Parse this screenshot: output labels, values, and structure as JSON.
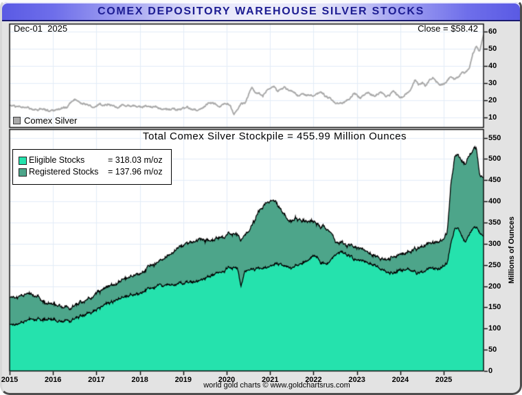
{
  "header": {
    "title": "COMEX DEPOSITORY WAREHOUSE SILVER STOCKS",
    "title_color": "#1c1c92"
  },
  "footer": {
    "text": "world gold charts © www.goldchartsrus.com"
  },
  "price_panel": {
    "date_label": "Dec-01  2025",
    "close_label": "Close = $58.42",
    "legend": {
      "label": "Comex Silver",
      "swatch_color": "#a9a9a9"
    }
  },
  "stock_panel": {
    "title": "Total Comex Silver Stockpile = 455.99 Million Ounces",
    "y_axis_label": "Millions of Ounces",
    "legend": [
      {
        "label": "Eligible Stocks",
        "value": "= 318.03 m/oz",
        "color": "#25e2ad"
      },
      {
        "label": "Registered Stocks",
        "value": "= 137.96 m/oz",
        "color": "#4da58a"
      }
    ]
  },
  "colors": {
    "frame_bg": "#e3e3e3",
    "plot_bg": "#ffffff",
    "grid": "#e2ecf7",
    "plot_border": "#000000",
    "price_line": "#ababab",
    "eligible_fill": "#25e2ad",
    "registered_fill": "#4da58a",
    "area_outline": "#000000",
    "titlebar_navy": "#1a1a70"
  },
  "chart_data": [
    {
      "type": "line",
      "panel": "top",
      "title": "",
      "ylabel": "",
      "x_start": 2015.0,
      "x_step_years": 0.0833333,
      "xticks": [
        2015,
        2016,
        2017,
        2018,
        2019,
        2020,
        2021,
        2022,
        2023,
        2024,
        2025
      ],
      "yticks": [
        10,
        20,
        30,
        40,
        50,
        60
      ],
      "ylim": [
        4.3,
        64.5
      ],
      "grid": true,
      "legend_position": "bottom-left",
      "annotations": {
        "date": "Dec-01  2025",
        "close": "Close = $58.42"
      },
      "series": [
        {
          "name": "Comex Silver",
          "color": "#ababab",
          "values_monthly": [
            17.2,
            16.6,
            16.2,
            16.3,
            16.8,
            15.8,
            15.0,
            14.8,
            14.6,
            15.8,
            14.4,
            13.9,
            14.1,
            14.9,
            15.4,
            16.2,
            16.0,
            18.6,
            20.2,
            19.4,
            19.2,
            17.8,
            16.6,
            16.0,
            16.8,
            17.9,
            17.4,
            17.9,
            17.3,
            16.6,
            16.1,
            17.1,
            16.9,
            16.7,
            17.0,
            16.4,
            17.2,
            16.5,
            16.3,
            16.4,
            16.4,
            16.1,
            15.5,
            14.6,
            14.2,
            14.5,
            14.2,
            14.7,
            15.9,
            15.9,
            15.1,
            15.0,
            14.4,
            15.2,
            16.3,
            18.3,
            19.0,
            17.6,
            17.0,
            17.8,
            18.0,
            16.7,
            12.0,
            15.2,
            17.9,
            18.2,
            22.8,
            28.3,
            24.2,
            23.7,
            22.6,
            26.0,
            27.0,
            28.0,
            25.5,
            25.9,
            27.9,
            26.2,
            25.5,
            23.9,
            22.2,
            23.9,
            23.3,
            22.9,
            22.4,
            24.4,
            24.9,
            23.1,
            21.6,
            20.4,
            18.9,
            18.0,
            19.0,
            19.2,
            21.2,
            23.9,
            23.6,
            21.0,
            23.3,
            25.1,
            23.6,
            22.8,
            24.4,
            24.2,
            22.2,
            22.9,
            25.3,
            23.8,
            22.4,
            22.7,
            24.5,
            27.0,
            31.5,
            29.5,
            30.5,
            28.5,
            31.0,
            33.5,
            31.0,
            29.0,
            29.5,
            32.0,
            33.8,
            32.5,
            33.5,
            36.0,
            37.0,
            38.5,
            47.0,
            52.0,
            48.5,
            58.42
          ]
        }
      ]
    },
    {
      "type": "area",
      "stacked": true,
      "panel": "bottom",
      "title": "Total Comex Silver Stockpile = 455.99 Million Ounces",
      "ylabel": "Millions of Ounces",
      "x_start": 2015.0,
      "x_step_years": 0.0833333,
      "xticks": [
        2015,
        2016,
        2017,
        2018,
        2019,
        2020,
        2021,
        2022,
        2023,
        2024,
        2025
      ],
      "yticks": [
        0,
        50,
        100,
        150,
        200,
        250,
        300,
        350,
        400,
        450,
        500,
        550
      ],
      "ylim": [
        0,
        569.6
      ],
      "grid": true,
      "legend_position": "top-left",
      "total_label": "455.99 Million Ounces",
      "series": [
        {
          "name": "Eligible Stocks",
          "color": "#25e2ad",
          "last_value": 318.03,
          "values_monthly": [
            110,
            112,
            114,
            116,
            119,
            121,
            122,
            121,
            120,
            120,
            121,
            121,
            121,
            120,
            119,
            118,
            118,
            119,
            122,
            126,
            130,
            134,
            138,
            142,
            146,
            150,
            154,
            158,
            162,
            166,
            169,
            172,
            175,
            177,
            179,
            180,
            181,
            186,
            191,
            194,
            197,
            200,
            202,
            204,
            205,
            206,
            207,
            208,
            208,
            209,
            210,
            211,
            212,
            214,
            219,
            224,
            228,
            231,
            233,
            236,
            240,
            242,
            243,
            242,
            200,
            235,
            240,
            240,
            241,
            242,
            244,
            245,
            248,
            252,
            257,
            253,
            248,
            245,
            244,
            246,
            250,
            255,
            261,
            267,
            272,
            268,
            258,
            251,
            255,
            263,
            272,
            280,
            282,
            276,
            270,
            265,
            262,
            259,
            257,
            255,
            253,
            250,
            246,
            241,
            237,
            234,
            230,
            232,
            236,
            238,
            239,
            237,
            232,
            230,
            233,
            237,
            240,
            241,
            241,
            243,
            248,
            255,
            305,
            335,
            338,
            322,
            306,
            320,
            334,
            342,
            328,
            318.03
          ]
        },
        {
          "name": "Registered Stocks",
          "color": "#4da58a",
          "last_value": 137.96,
          "values_monthly": [
            64,
            64,
            64,
            63,
            62,
            61,
            58,
            54,
            50,
            45,
            41,
            38,
            37,
            35,
            33,
            32,
            31,
            31,
            31,
            31,
            31,
            31,
            32,
            33,
            38,
            38,
            38,
            38,
            38,
            38,
            39,
            40,
            41,
            42,
            44,
            45,
            46,
            48,
            50,
            53,
            55,
            57,
            61,
            65,
            70,
            75,
            81,
            87,
            91,
            93,
            94,
            95,
            96,
            95,
            91,
            87,
            84,
            83,
            83,
            82,
            80,
            80,
            81,
            80,
            108,
            87,
            90,
            102,
            119,
            136,
            146,
            153,
            152,
            151,
            139,
            129,
            124,
            110,
            111,
            114,
            107,
            100,
            93,
            88,
            81,
            80,
            84,
            86,
            78,
            62,
            33,
            22,
            20,
            21,
            25,
            28,
            29,
            29,
            27,
            26,
            25,
            25,
            26,
            29,
            31,
            34,
            39,
            38,
            36,
            36,
            38,
            44,
            53,
            59,
            60,
            59,
            59,
            61,
            64,
            65,
            64,
            75,
            140,
            170,
            174,
            176,
            184,
            188,
            184,
            186,
            137,
            137.96
          ]
        }
      ]
    }
  ]
}
